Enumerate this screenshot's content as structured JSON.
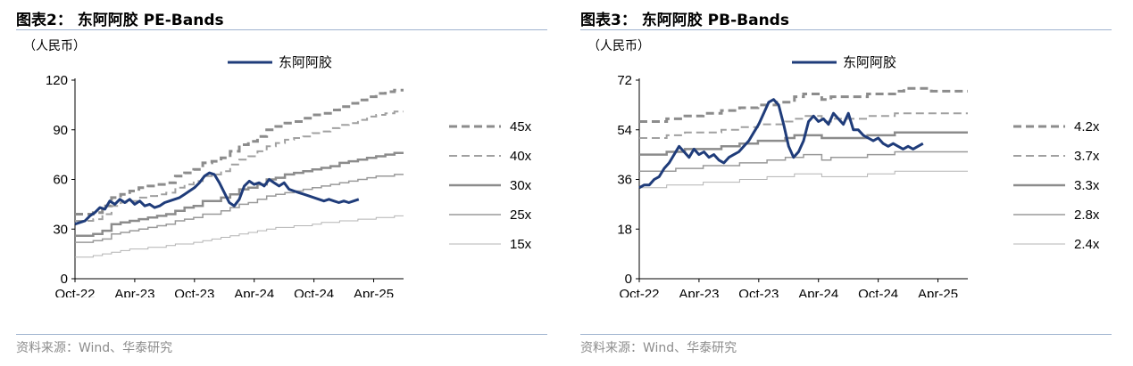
{
  "charts": [
    {
      "title": "图表2：  东阿阿胶 PE-Bands",
      "source": "资料来源：Wind、华泰研究",
      "unit": "（人民币）",
      "chart_data": {
        "type": "line",
        "title": "东阿阿胶 PE-Bands",
        "ylabel": "（人民币）",
        "ylim": [
          0,
          120
        ],
        "yticks": [
          0,
          30,
          60,
          90,
          120
        ],
        "x_tick_labels": [
          "Oct-22",
          "Apr-23",
          "Oct-23",
          "Apr-24",
          "Oct-24",
          "Apr-25"
        ],
        "x_range": [
          "Oct-22",
          "Jul-25"
        ],
        "price_series": {
          "name": "东阿阿胶",
          "color": "#1f3c7a",
          "points": [
            [
              0,
              33
            ],
            [
              0.5,
              34
            ],
            [
              1,
              35
            ],
            [
              1.5,
              38
            ],
            [
              2,
              40
            ],
            [
              2.5,
              43
            ],
            [
              3,
              42
            ],
            [
              3.5,
              47
            ],
            [
              4,
              45
            ],
            [
              4.5,
              48
            ],
            [
              5,
              46
            ],
            [
              5.5,
              48
            ],
            [
              6,
              45
            ],
            [
              6.5,
              47
            ],
            [
              7,
              44
            ],
            [
              7.5,
              45
            ],
            [
              8,
              43
            ],
            [
              8.5,
              44
            ],
            [
              9,
              46
            ],
            [
              9.5,
              47
            ],
            [
              10,
              48
            ],
            [
              10.5,
              49
            ],
            [
              11,
              51
            ],
            [
              11.5,
              53
            ],
            [
              12,
              55
            ],
            [
              12.5,
              58
            ],
            [
              13,
              62
            ],
            [
              13.5,
              64
            ],
            [
              14,
              63
            ],
            [
              14.5,
              58
            ],
            [
              15,
              52
            ],
            [
              15.5,
              46
            ],
            [
              16,
              44
            ],
            [
              16.5,
              48
            ],
            [
              17,
              56
            ],
            [
              17.5,
              59
            ],
            [
              18,
              57
            ],
            [
              18.5,
              58
            ],
            [
              19,
              56
            ],
            [
              19.5,
              60
            ],
            [
              20,
              58
            ],
            [
              20.5,
              56
            ],
            [
              21,
              58
            ],
            [
              21.5,
              54
            ],
            [
              22,
              53
            ],
            [
              22.5,
              52
            ],
            [
              23,
              51
            ],
            [
              23.5,
              50
            ],
            [
              24,
              49
            ],
            [
              24.5,
              48
            ],
            [
              25,
              47
            ],
            [
              25.5,
              48
            ],
            [
              26,
              47
            ],
            [
              26.5,
              46
            ],
            [
              27,
              47
            ],
            [
              27.5,
              46
            ],
            [
              28,
              47
            ],
            [
              28.5,
              48
            ]
          ]
        },
        "bands": [
          {
            "name": "45x",
            "style": "dashed",
            "color": "#8c8c8c",
            "width": 3,
            "values": [
              39,
              39,
              40,
              44,
              49,
              51,
              53,
              55,
              56,
              57,
              58,
              62,
              64,
              66,
              70,
              71,
              73,
              77,
              81,
              83,
              86,
              90,
              92,
              94,
              95,
              97,
              99,
              100,
              102,
              104,
              106,
              108,
              110,
              112,
              113,
              114
            ]
          },
          {
            "name": "40x",
            "style": "dashed",
            "color": "#a0a0a0",
            "width": 2,
            "values": [
              35,
              35,
              36,
              39,
              44,
              46,
              47,
              49,
              50,
              51,
              52,
              55,
              57,
              59,
              62,
              63,
              65,
              69,
              72,
              74,
              77,
              80,
              82,
              84,
              85,
              86,
              88,
              89,
              91,
              93,
              94,
              96,
              98,
              99,
              100,
              101
            ]
          },
          {
            "name": "30x",
            "style": "solid",
            "color": "#8c8c8c",
            "width": 2.5,
            "values": [
              26,
              26,
              27,
              29,
              33,
              34,
              35,
              36,
              37,
              38,
              39,
              41,
              43,
              44,
              47,
              47,
              49,
              51,
              54,
              55,
              57,
              60,
              61,
              63,
              64,
              65,
              66,
              67,
              68,
              70,
              71,
              72,
              73,
              74,
              75,
              76
            ]
          },
          {
            "name": "25x",
            "style": "solid",
            "color": "#9a9a9a",
            "width": 1.5,
            "values": [
              22,
              22,
              23,
              24,
              27,
              28,
              29,
              30,
              31,
              32,
              33,
              35,
              36,
              37,
              39,
              39,
              41,
              43,
              45,
              46,
              48,
              50,
              51,
              52,
              53,
              54,
              55,
              56,
              57,
              58,
              59,
              60,
              61,
              62,
              62,
              63
            ]
          },
          {
            "name": "15x",
            "style": "solid",
            "color": "#b4b4b4",
            "width": 1,
            "values": [
              13,
              13,
              14,
              15,
              16,
              17,
              18,
              18,
              19,
              19,
              20,
              21,
              21,
              22,
              23,
              24,
              25,
              26,
              27,
              28,
              29,
              30,
              31,
              31,
              32,
              32,
              33,
              34,
              34,
              35,
              35,
              36,
              36,
              37,
              37,
              38
            ]
          }
        ],
        "legend": [
          "东阿阿胶"
        ],
        "legend_placement": "top-center",
        "grid": false
      }
    },
    {
      "title": "图表3：  东阿阿胶 PB-Bands",
      "source": "资料来源：Wind、华泰研究",
      "unit": "（人民币）",
      "chart_data": {
        "type": "line",
        "title": "东阿阿胶 PB-Bands",
        "ylabel": "（人民币）",
        "ylim": [
          0,
          72
        ],
        "yticks": [
          0,
          18,
          36,
          54,
          72
        ],
        "x_tick_labels": [
          "Oct-22",
          "Apr-23",
          "Oct-23",
          "Apr-24",
          "Oct-24",
          "Apr-25"
        ],
        "x_range": [
          "Oct-22",
          "Jul-25"
        ],
        "price_series": {
          "name": "东阿阿胶",
          "color": "#1f3c7a",
          "points": [
            [
              0,
              33
            ],
            [
              0.5,
              34
            ],
            [
              1,
              34
            ],
            [
              1.5,
              36
            ],
            [
              2,
              37
            ],
            [
              2.5,
              40
            ],
            [
              3,
              42
            ],
            [
              3.5,
              45
            ],
            [
              4,
              48
            ],
            [
              4.5,
              46
            ],
            [
              5,
              44
            ],
            [
              5.5,
              47
            ],
            [
              6,
              45
            ],
            [
              6.5,
              46
            ],
            [
              7,
              44
            ],
            [
              7.5,
              45
            ],
            [
              8,
              43
            ],
            [
              8.5,
              42
            ],
            [
              9,
              44
            ],
            [
              9.5,
              45
            ],
            [
              10,
              46
            ],
            [
              10.5,
              48
            ],
            [
              11,
              50
            ],
            [
              11.5,
              53
            ],
            [
              12,
              56
            ],
            [
              12.5,
              60
            ],
            [
              13,
              64
            ],
            [
              13.5,
              65
            ],
            [
              14,
              63
            ],
            [
              14.5,
              56
            ],
            [
              15,
              48
            ],
            [
              15.5,
              44
            ],
            [
              16,
              46
            ],
            [
              16.5,
              50
            ],
            [
              17,
              57
            ],
            [
              17.5,
              59
            ],
            [
              18,
              57
            ],
            [
              18.5,
              58
            ],
            [
              19,
              56
            ],
            [
              19.5,
              60
            ],
            [
              20,
              58
            ],
            [
              20.5,
              56
            ],
            [
              21,
              60
            ],
            [
              21.5,
              54
            ],
            [
              22,
              54
            ],
            [
              22.5,
              52
            ],
            [
              23,
              51
            ],
            [
              23.5,
              50
            ],
            [
              24,
              51
            ],
            [
              24.5,
              49
            ],
            [
              25,
              48
            ],
            [
              25.5,
              49
            ],
            [
              26,
              48
            ],
            [
              26.5,
              47
            ],
            [
              27,
              48
            ],
            [
              27.5,
              47
            ],
            [
              28,
              48
            ],
            [
              28.5,
              49
            ]
          ]
        },
        "bands": [
          {
            "name": "4.2x",
            "style": "dashed",
            "color": "#8c8c8c",
            "width": 3,
            "values": [
              57,
              57,
              57,
              58,
              58,
              59,
              59,
              60,
              60,
              61,
              61,
              62,
              62,
              63,
              63,
              64,
              64,
              66,
              67,
              67,
              65,
              66,
              66,
              66,
              66,
              67,
              67,
              67,
              68,
              69,
              69,
              69,
              68,
              68,
              68,
              68
            ]
          },
          {
            "name": "3.7x",
            "style": "dashed",
            "color": "#a0a0a0",
            "width": 2,
            "values": [
              51,
              51,
              51,
              52,
              52,
              53,
              53,
              53,
              53,
              54,
              54,
              55,
              55,
              56,
              56,
              56,
              57,
              58,
              59,
              59,
              57,
              58,
              58,
              58,
              58,
              59,
              59,
              59,
              60,
              60,
              60,
              60,
              60,
              60,
              60,
              60
            ]
          },
          {
            "name": "3.3x",
            "style": "solid",
            "color": "#8c8c8c",
            "width": 2.5,
            "values": [
              45,
              45,
              45,
              46,
              46,
              47,
              47,
              47,
              47,
              48,
              48,
              49,
              49,
              50,
              50,
              50,
              51,
              52,
              52,
              52,
              51,
              51,
              51,
              51,
              51,
              52,
              52,
              52,
              53,
              53,
              53,
              53,
              53,
              53,
              53,
              53
            ]
          },
          {
            "name": "2.8x",
            "style": "solid",
            "color": "#9a9a9a",
            "width": 1.5,
            "values": [
              39,
              39,
              39,
              39,
              40,
              40,
              40,
              41,
              41,
              41,
              41,
              42,
              42,
              42,
              43,
              43,
              44,
              44,
              45,
              45,
              43,
              44,
              44,
              44,
              44,
              45,
              45,
              45,
              46,
              46,
              46,
              46,
              46,
              46,
              46,
              46
            ]
          },
          {
            "name": "2.4x",
            "style": "solid",
            "color": "#b4b4b4",
            "width": 1,
            "values": [
              33,
              33,
              33,
              34,
              34,
              34,
              34,
              35,
              35,
              35,
              35,
              36,
              36,
              36,
              37,
              37,
              37,
              38,
              38,
              38,
              37,
              37,
              37,
              37,
              37,
              38,
              38,
              38,
              39,
              39,
              39,
              39,
              39,
              39,
              39,
              39
            ]
          }
        ],
        "legend": [
          "东阿阿胶"
        ],
        "legend_placement": "top-center",
        "grid": false
      }
    }
  ]
}
